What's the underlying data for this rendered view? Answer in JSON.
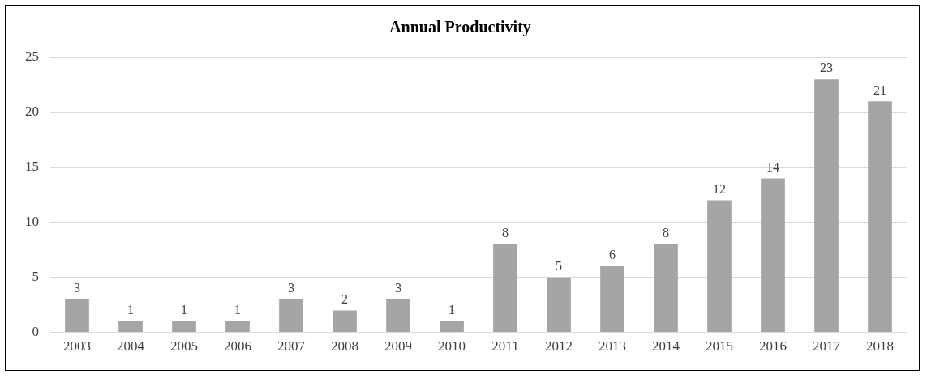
{
  "chart_data": {
    "type": "bar",
    "title": "Annual Productivity",
    "categories": [
      "2003",
      "2004",
      "2005",
      "2006",
      "2007",
      "2008",
      "2009",
      "2010",
      "2011",
      "2012",
      "2013",
      "2014",
      "2015",
      "2016",
      "2017",
      "2018"
    ],
    "values": [
      3,
      1,
      1,
      1,
      3,
      2,
      3,
      1,
      8,
      5,
      6,
      8,
      12,
      14,
      23,
      21
    ],
    "color": "#a5a5a5",
    "ylim": [
      0,
      25
    ],
    "yticks": [
      0,
      5,
      10,
      15,
      20,
      25
    ],
    "grid": "y",
    "data_labels": true,
    "legend": false
  }
}
